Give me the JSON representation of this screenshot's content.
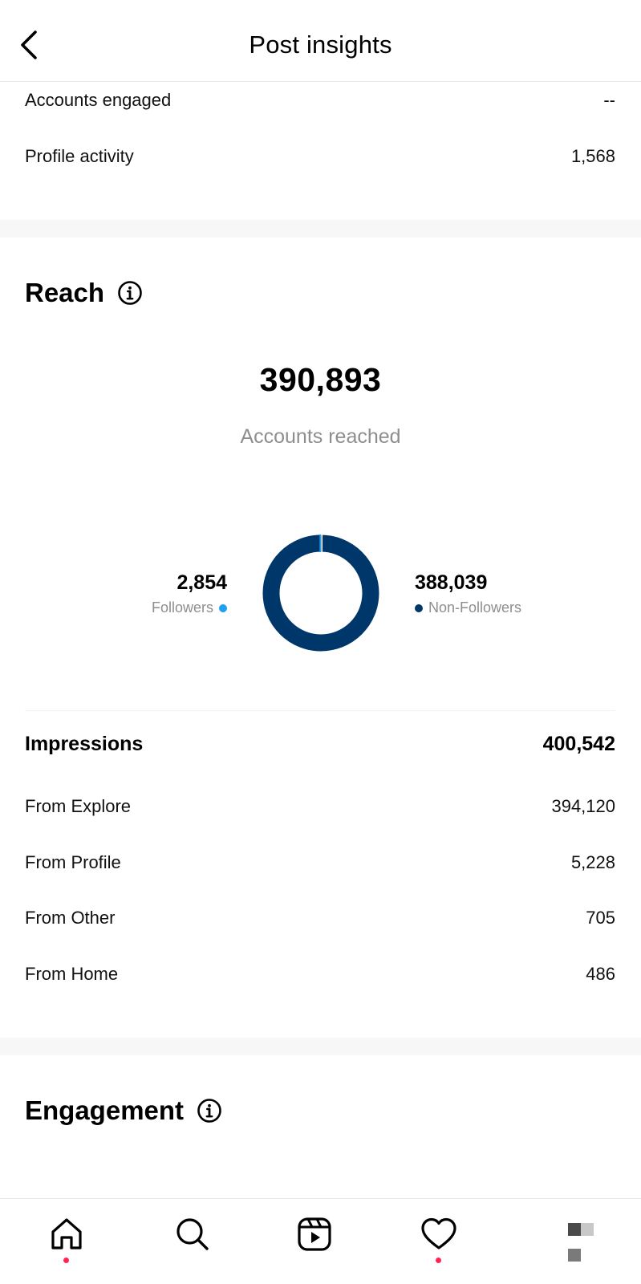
{
  "header": {
    "title": "Post insights"
  },
  "top_rows": [
    {
      "label": "Accounts engaged",
      "value": "--"
    },
    {
      "label": "Profile activity",
      "value": "1,568"
    }
  ],
  "reach": {
    "title": "Reach",
    "accounts_reached": "390,893",
    "accounts_reached_label": "Accounts reached",
    "followers": {
      "value": "2,854",
      "label": "Followers",
      "color": "#1da1f2"
    },
    "non_followers": {
      "value": "388,039",
      "label": "Non-Followers",
      "color": "#00376b"
    }
  },
  "impressions": {
    "label": "Impressions",
    "value": "400,542",
    "sources": [
      {
        "label": "From Explore",
        "value": "394,120"
      },
      {
        "label": "From Profile",
        "value": "5,228"
      },
      {
        "label": "From Other",
        "value": "705"
      },
      {
        "label": "From Home",
        "value": "486"
      }
    ]
  },
  "engagement": {
    "title": "Engagement"
  },
  "nav": {
    "items": [
      {
        "icon": "home-icon",
        "notification_dot": true
      },
      {
        "icon": "search-icon",
        "notification_dot": false
      },
      {
        "icon": "reels-icon",
        "notification_dot": false
      },
      {
        "icon": "heart-icon",
        "notification_dot": true
      },
      {
        "icon": "profile-avatar",
        "notification_dot": false
      }
    ]
  },
  "colors": {
    "accent_dark": "#00376b",
    "accent_light": "#1da1f2",
    "notification": "#ff2452",
    "muted_text": "#8e8e8e"
  }
}
